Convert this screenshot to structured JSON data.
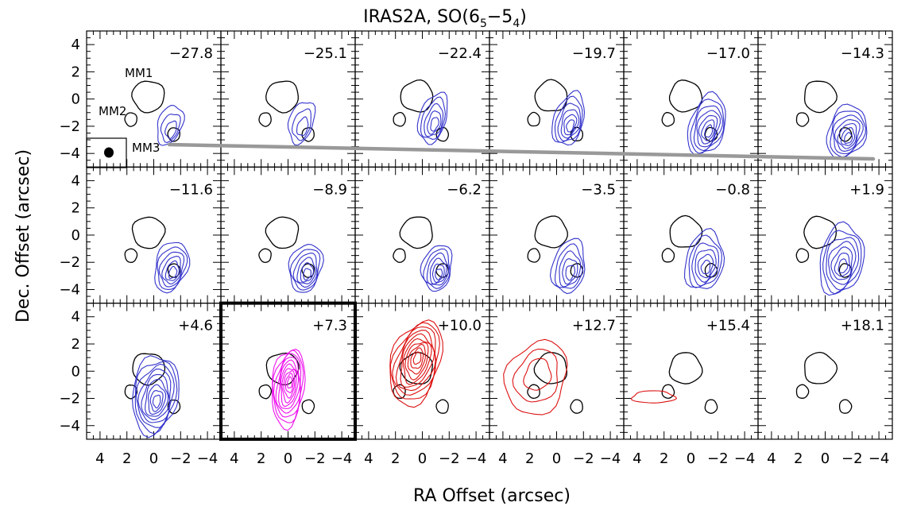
{
  "chart_data": {
    "type": "contour-grid",
    "title": "IRAS2A, SO(6",
    "title_sub1": "5",
    "title_dash": "−5",
    "title_sub2": "4",
    "title_close": ")",
    "xlabel": "RA Offset (arcsec)",
    "ylabel": "Dec. Offset (arcsec)",
    "x_range": [
      5,
      -5
    ],
    "y_range": [
      -5,
      5
    ],
    "x_tick_labels": [
      "4",
      "2",
      "0",
      "−2",
      "−4"
    ],
    "x_tick_values": [
      4,
      2,
      0,
      -2,
      -4
    ],
    "y_tick_labels": [
      "4",
      "2",
      "0",
      "−2",
      "−4"
    ],
    "y_tick_values": [
      4,
      2,
      0,
      -2,
      -4
    ],
    "channels": [
      "−27.8",
      "−25.1",
      "−22.4",
      "−19.7",
      "−17.0",
      "−14.3",
      "−11.6",
      "−8.9",
      "−6.2",
      "−3.5",
      "−0.8",
      "+1.9",
      "+4.6",
      "+7.3",
      "+10.0",
      "+12.7",
      "+15.4",
      "+18.1"
    ],
    "sources": [
      {
        "label": "MM1",
        "x": 0.4,
        "y": 0.2
      },
      {
        "label": "MM2",
        "x": 1.7,
        "y": -1.5
      },
      {
        "label": "MM3",
        "x": -1.5,
        "y": -2.6
      }
    ],
    "highlighted_channel": "+7.3",
    "colors": {
      "blue": "#3333cc",
      "red": "#dd1111",
      "magenta": "#ee11ee",
      "continuum": "#000000",
      "outflow_axis": "#999999"
    }
  }
}
